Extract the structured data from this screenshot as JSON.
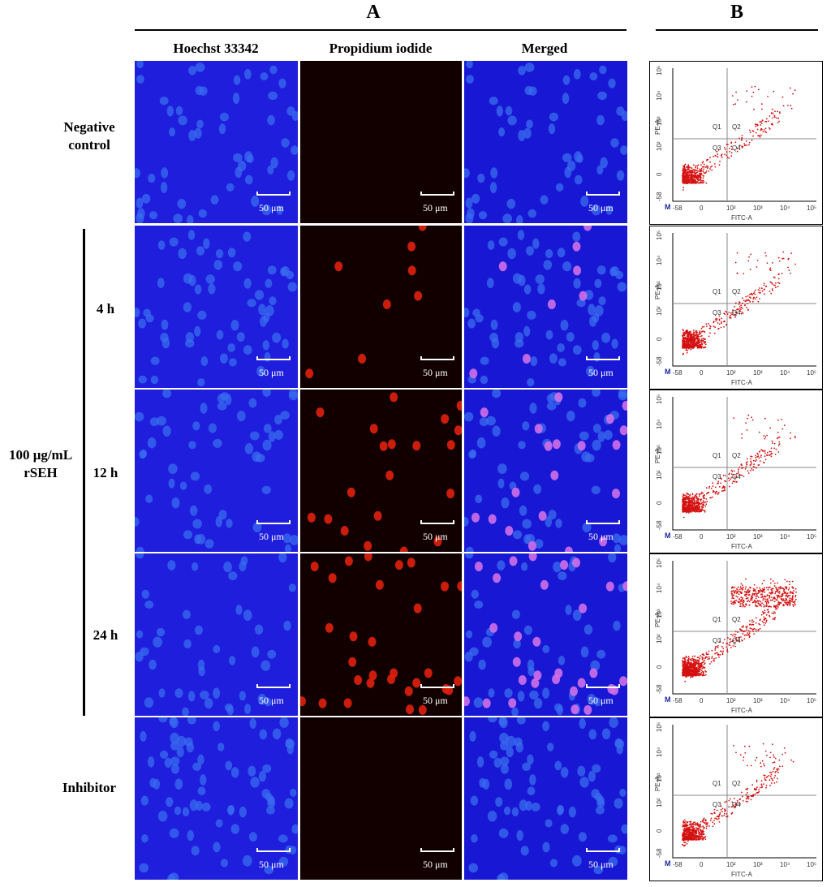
{
  "panels": {
    "A": "A",
    "B": "B"
  },
  "columns": [
    "Hoechst 33342",
    "Propidium iodide",
    "Merged"
  ],
  "rows": [
    {
      "label": "Negative\ncontrol",
      "id": "negative-control",
      "flow_q": [
        "Q1",
        "Q2",
        "Q3",
        "Q4"
      ]
    },
    {
      "label": "4 h",
      "id": "4h",
      "flow_q": [
        "Q1",
        "Q2",
        "Q3",
        "Q4"
      ]
    },
    {
      "label": "12 h",
      "id": "12h",
      "flow_q": [
        "Q1",
        "Q2",
        "Q3",
        "Q4"
      ]
    },
    {
      "label": "24 h",
      "id": "24h",
      "flow_q": [
        "Q1",
        "Q2",
        "Q3",
        "Q4"
      ]
    },
    {
      "label": "Inhibitor",
      "id": "inhibitor",
      "flow_q": [
        "Q1",
        "Q2",
        "Q3",
        "Q4"
      ]
    }
  ],
  "treatment_label": "100 μg/mL\nrSEH",
  "scale_bar": "50 μm",
  "flow": {
    "x_axis": "FITC-A",
    "y_axis": "PE-A",
    "corner_mark": "M",
    "x_ticks": [
      "-58",
      "0",
      "10²",
      "10³",
      "10⁴",
      "10⁵"
    ],
    "y_ticks": [
      "-58",
      "0",
      "10²",
      "10³",
      "10⁴",
      "10⁵"
    ]
  },
  "colors": {
    "hoechst": "#1e1edc",
    "pi_bg": "#120000",
    "pi_nucleus": "#e0200c",
    "merged_bg": "#1818d4",
    "nucleus_blue": "#3a6cf0",
    "flow_dots": "#d41010"
  }
}
